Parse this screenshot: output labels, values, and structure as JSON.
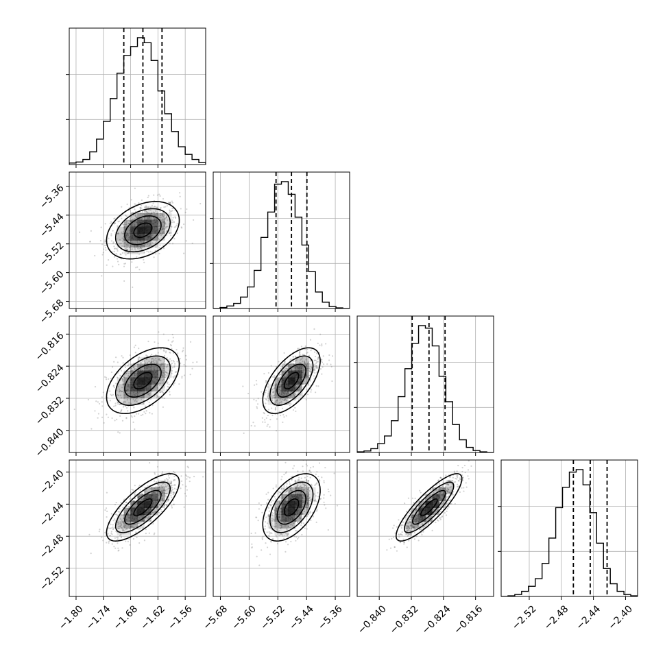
{
  "chart_data": {
    "type": "corner",
    "parameters": [
      {
        "range": [
          -1.815,
          -1.515
        ],
        "ticks": [
          "−1.80",
          "−1.74",
          "−1.68",
          "−1.62",
          "−1.56"
        ],
        "tick_values": [
          -1.8,
          -1.74,
          -1.68,
          -1.62,
          -1.56
        ],
        "mean": -1.653,
        "sd": 0.04,
        "quantiles": [
          -1.695,
          -1.653,
          -1.611
        ]
      },
      {
        "range": [
          -5.7,
          -5.32
        ],
        "ticks": [
          "−5.68",
          "−5.60",
          "−5.52",
          "−5.44",
          "−5.36"
        ],
        "tick_values": [
          -5.68,
          -5.6,
          -5.52,
          -5.44,
          -5.36
        ],
        "mean": -5.482,
        "sd": 0.04,
        "quantiles": [
          -5.525,
          -5.482,
          -5.439
        ]
      },
      {
        "range": [
          -0.8455,
          -0.8115
        ],
        "ticks": [
          "−0.840",
          "−0.832",
          "−0.824",
          "−0.816"
        ],
        "tick_values": [
          -0.84,
          -0.832,
          -0.824,
          -0.816
        ],
        "mean": -0.8276,
        "sd": 0.0041,
        "quantiles": [
          -0.8318,
          -0.8276,
          -0.8236
        ]
      },
      {
        "range": [
          -2.555,
          -2.385
        ],
        "ticks": [
          "−2.52",
          "−2.48",
          "−2.44",
          "−2.40"
        ],
        "tick_values": [
          -2.52,
          -2.48,
          -2.44,
          -2.4
        ],
        "mean": -2.444,
        "sd": 0.021,
        "quantiles": [
          -2.465,
          -2.444,
          -2.423
        ]
      }
    ],
    "histograms": [
      {
        "bins": 20,
        "counts": [
          0.012,
          0.02,
          0.04,
          0.1,
          0.2,
          0.34,
          0.52,
          0.72,
          0.86,
          0.93,
          1.0,
          0.96,
          0.82,
          0.58,
          0.4,
          0.26,
          0.14,
          0.08,
          0.04,
          0.015
        ]
      },
      {
        "bins": 20,
        "counts": [
          0.0,
          0.008,
          0.02,
          0.04,
          0.09,
          0.17,
          0.3,
          0.56,
          0.76,
          0.98,
          1.0,
          0.9,
          0.72,
          0.5,
          0.29,
          0.13,
          0.05,
          0.015,
          0.005,
          0.0
        ]
      },
      {
        "bins": 20,
        "counts": [
          0.005,
          0.012,
          0.03,
          0.07,
          0.13,
          0.25,
          0.44,
          0.66,
          0.86,
          1.0,
          0.98,
          0.84,
          0.6,
          0.4,
          0.22,
          0.1,
          0.04,
          0.015,
          0.005,
          0.0
        ]
      },
      {
        "bins": 20,
        "counts": [
          0.0,
          0.005,
          0.015,
          0.04,
          0.08,
          0.14,
          0.26,
          0.46,
          0.7,
          0.86,
          0.98,
          1.0,
          0.88,
          0.66,
          0.42,
          0.22,
          0.1,
          0.04,
          0.015,
          0.005
        ]
      }
    ],
    "correlations": {
      "1-0": 0.35,
      "2-0": 0.5,
      "2-1": 0.6,
      "3-0": 0.75,
      "3-1": 0.5,
      "3-2": 0.85
    },
    "contour_levels_sigma": [
      0.5,
      1.0,
      1.5,
      2.0
    ],
    "quantile_lines_style": "dashed",
    "grid": true,
    "colors": {
      "line": "#000000",
      "grid": "#b0b0b0",
      "points": "#7f7f7f",
      "density": "#000000"
    }
  }
}
